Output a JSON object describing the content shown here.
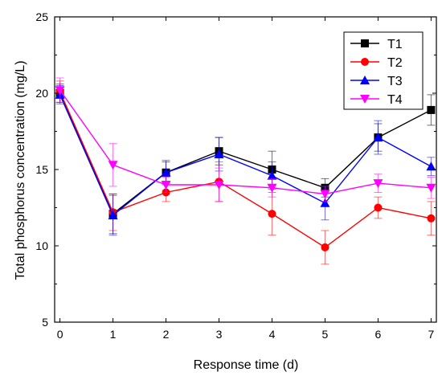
{
  "chart_data": {
    "type": "line",
    "xlabel": "Response time (d)",
    "ylabel": "Total phosphorus concentration (mg/L)",
    "x": [
      0,
      1,
      2,
      3,
      4,
      5,
      6,
      7
    ],
    "xlim": [
      -0.1,
      7.1
    ],
    "ylim": [
      5,
      25
    ],
    "xticks": [
      0,
      1,
      2,
      3,
      4,
      5,
      6,
      7
    ],
    "yticks": [
      5,
      10,
      15,
      20,
      25
    ],
    "grid": false,
    "legend_position": "top-right",
    "series": [
      {
        "name": "T1",
        "color": "#000000",
        "marker": "square",
        "values": [
          20.0,
          12.1,
          14.8,
          16.2,
          15.0,
          13.8,
          17.1,
          18.9
        ],
        "errors": [
          0.6,
          1.3,
          0.7,
          0.9,
          1.2,
          0.6,
          0.9,
          1.0
        ]
      },
      {
        "name": "T2",
        "color": "#ff0000",
        "marker": "circle",
        "values": [
          20.1,
          12.2,
          13.5,
          14.2,
          12.1,
          9.9,
          12.5,
          11.8
        ],
        "errors": [
          0.7,
          1.2,
          0.6,
          1.3,
          1.4,
          1.1,
          0.7,
          1.1
        ]
      },
      {
        "name": "T3",
        "color": "#0000ff",
        "marker": "triangle-up",
        "values": [
          19.9,
          12.0,
          14.8,
          16.0,
          14.6,
          12.8,
          17.1,
          15.2
        ],
        "errors": [
          0.6,
          1.3,
          0.8,
          1.1,
          0.9,
          1.1,
          1.1,
          0.6
        ]
      },
      {
        "name": "T4",
        "color": "#ff00ff",
        "marker": "triangle-down",
        "values": [
          20.2,
          15.3,
          14.0,
          14.0,
          13.8,
          13.4,
          14.1,
          13.8
        ],
        "errors": [
          0.8,
          1.4,
          0.5,
          1.1,
          0.6,
          0.5,
          0.6,
          0.7
        ]
      }
    ]
  }
}
